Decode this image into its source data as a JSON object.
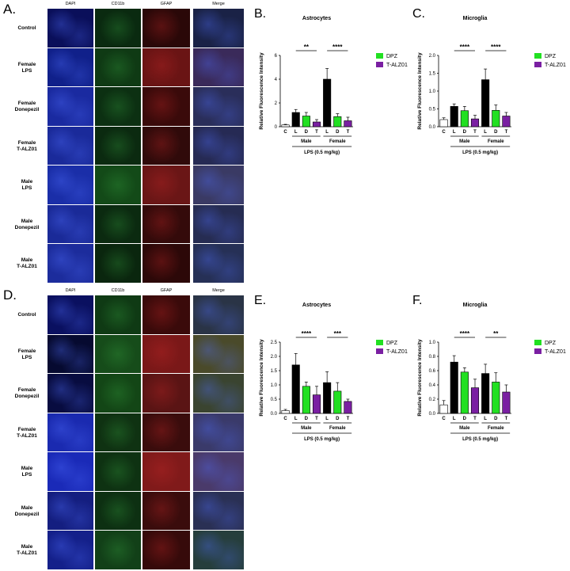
{
  "image_grids": [
    {
      "letter": "A.",
      "columns": [
        "DAPI",
        "CD11b",
        "GFAP",
        "Merge"
      ],
      "rows": [
        [
          "Control"
        ],
        [
          "Female",
          "LPS"
        ],
        [
          "Female",
          "Donepezil"
        ],
        [
          "Female",
          "T-ALZ01"
        ],
        [
          "Male",
          "LPS"
        ],
        [
          "Male",
          "Donepezil"
        ],
        [
          "Male",
          "T-ALZ01"
        ]
      ],
      "tints": {
        "dapi": [
          "#0a0f5a",
          "#10208a",
          "#1a2aa0",
          "#1a2a9a",
          "#1a2ea8",
          "#1a2a98",
          "#1c2c9c"
        ],
        "cd11b": [
          "#0a2a10",
          "#0f3a14",
          "#0c3012",
          "#0b2a10",
          "#134a18",
          "#0b2a10",
          "#0a260e"
        ],
        "gfap": [
          "#2a0808",
          "#6a1414",
          "#3a0a0a",
          "#300a0a",
          "#6a1616",
          "#340a0a",
          "#2c0808"
        ],
        "merge": [
          "#1a2246",
          "#3a2a5a",
          "#2a2e5a",
          "#262a54",
          "#3a3a64",
          "#262c52",
          "#263056"
        ]
      }
    },
    {
      "letter": "D.",
      "columns": [
        "DAPI",
        "CD11b",
        "GFAP",
        "Merge"
      ],
      "rows": [
        [
          "Control"
        ],
        [
          "Female",
          "LPS"
        ],
        [
          "Female",
          "Donepezil"
        ],
        [
          "Female",
          "T-ALZ01"
        ],
        [
          "Male",
          "LPS"
        ],
        [
          "Male",
          "Donepezil"
        ],
        [
          "Male",
          "T-ALZ01"
        ]
      ],
      "tints": {
        "dapi": [
          "#0a1060",
          "#060a30",
          "#080c40",
          "#1a2ab0",
          "#1a2ab8",
          "#141e80",
          "#14208a"
        ],
        "cd11b": [
          "#0f3a14",
          "#164c1a",
          "#134616",
          "#0f3212",
          "#0e3212",
          "#0d3012",
          "#124018"
        ],
        "gfap": [
          "#3a0a0a",
          "#7a1818",
          "#5a1414",
          "#3a0c0c",
          "#801a1a",
          "#3a0c0c",
          "#360a0a"
        ],
        "merge": [
          "#2a3446",
          "#4a4a2a",
          "#3a4430",
          "#3a3a6a",
          "#4a3a6a",
          "#2a3054",
          "#263e3c"
        ]
      }
    }
  ],
  "chart_data": [
    {
      "letter": "B.",
      "type": "bar",
      "title": "Astrocytes",
      "ylabel": "Relative Fluorescence Intensity",
      "ylim": [
        0,
        6
      ],
      "yticks": [
        "0",
        "2",
        "4",
        "6"
      ],
      "ytick_values": [
        0,
        2,
        4,
        6
      ],
      "categories": [
        "C",
        "L",
        "D",
        "T",
        "L",
        "D",
        "T"
      ],
      "values": [
        0.15,
        1.2,
        0.9,
        0.4,
        4.0,
        0.85,
        0.5
      ],
      "errors": [
        0.05,
        0.25,
        0.3,
        0.2,
        0.9,
        0.25,
        0.3
      ],
      "colors": [
        "#ffffff",
        "#000000",
        "#22e022",
        "#7a1fa2",
        "#000000",
        "#22e022",
        "#7a1fa2"
      ],
      "groups": [
        "Male",
        "Female"
      ],
      "treatment": "LPS (0.5 mg/kg)",
      "significance": [
        "**",
        "****"
      ],
      "legend": [
        {
          "name": "DPZ",
          "color": "#22e022"
        },
        {
          "name": "T-ALZ01",
          "color": "#7a1fa2"
        }
      ]
    },
    {
      "letter": "C.",
      "type": "bar",
      "title": "Microglia",
      "ylabel": "Relative Fluorescence Intensity",
      "ylim": [
        0,
        2.0
      ],
      "yticks": [
        "0.0",
        "0.5",
        "1.0",
        "1.5",
        "2.0"
      ],
      "ytick_values": [
        0,
        0.5,
        1.0,
        1.5,
        2.0
      ],
      "categories": [
        "C",
        "L",
        "D",
        "T",
        "L",
        "D",
        "T"
      ],
      "values": [
        0.2,
        0.57,
        0.45,
        0.22,
        1.32,
        0.46,
        0.3
      ],
      "errors": [
        0.05,
        0.07,
        0.12,
        0.1,
        0.3,
        0.15,
        0.1
      ],
      "colors": [
        "#ffffff",
        "#000000",
        "#22e022",
        "#7a1fa2",
        "#000000",
        "#22e022",
        "#7a1fa2"
      ],
      "groups": [
        "Male",
        "Female"
      ],
      "treatment": "LPS (0.5 mg/kg)",
      "significance": [
        "****",
        "****"
      ],
      "legend": [
        {
          "name": "DPZ",
          "color": "#22e022"
        },
        {
          "name": "T-ALZ01",
          "color": "#7a1fa2"
        }
      ]
    },
    {
      "letter": "E.",
      "type": "bar",
      "title": "Astrocytes",
      "ylabel": "Relative Fluorescence Intensity",
      "ylim": [
        0,
        2.5
      ],
      "yticks": [
        "0.0",
        "0.5",
        "1.0",
        "1.5",
        "2.0",
        "2.5"
      ],
      "ytick_values": [
        0,
        0.5,
        1.0,
        1.5,
        2.0,
        2.5
      ],
      "categories": [
        "C",
        "L",
        "D",
        "T",
        "L",
        "D",
        "T"
      ],
      "values": [
        0.1,
        1.7,
        0.95,
        0.65,
        1.08,
        0.78,
        0.42
      ],
      "errors": [
        0.04,
        0.4,
        0.15,
        0.3,
        0.38,
        0.3,
        0.08
      ],
      "colors": [
        "#ffffff",
        "#000000",
        "#22e022",
        "#7a1fa2",
        "#000000",
        "#22e022",
        "#7a1fa2"
      ],
      "groups": [
        "Male",
        "Female"
      ],
      "treatment": "LPS (0.5 mg/kg)",
      "significance": [
        "****",
        "***"
      ],
      "legend": [
        {
          "name": "DPZ",
          "color": "#22e022"
        },
        {
          "name": "T-ALZ01",
          "color": "#7a1fa2"
        }
      ]
    },
    {
      "letter": "F.",
      "type": "bar",
      "title": "Microglia",
      "ylabel": "Relative Fluorescence Intensity",
      "ylim": [
        0,
        1.0
      ],
      "yticks": [
        "0.0",
        "0.2",
        "0.4",
        "0.6",
        "0.8",
        "1.0"
      ],
      "ytick_values": [
        0,
        0.2,
        0.4,
        0.6,
        0.8,
        1.0
      ],
      "categories": [
        "C",
        "L",
        "D",
        "T",
        "L",
        "D",
        "T"
      ],
      "values": [
        0.12,
        0.72,
        0.58,
        0.36,
        0.56,
        0.44,
        0.3
      ],
      "errors": [
        0.06,
        0.09,
        0.06,
        0.12,
        0.13,
        0.13,
        0.1
      ],
      "colors": [
        "#ffffff",
        "#000000",
        "#22e022",
        "#7a1fa2",
        "#000000",
        "#22e022",
        "#7a1fa2"
      ],
      "groups": [
        "Male",
        "Female"
      ],
      "treatment": "LPS (0.5 mg/kg)",
      "significance": [
        "****",
        "**"
      ],
      "legend": [
        {
          "name": "DPZ",
          "color": "#22e022"
        },
        {
          "name": "T-ALZ01",
          "color": "#7a1fa2"
        }
      ]
    }
  ]
}
